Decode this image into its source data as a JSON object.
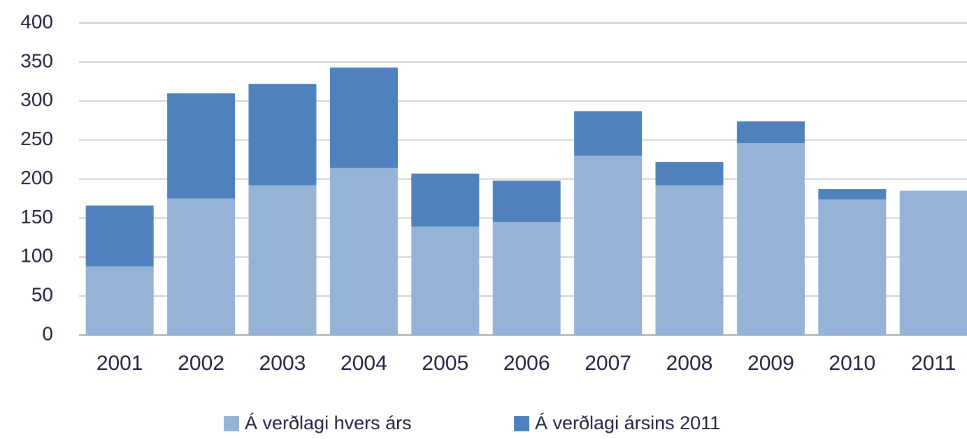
{
  "chart_data": {
    "type": "stacked_bar",
    "categories": [
      "2001",
      "2002",
      "2003",
      "2004",
      "2005",
      "2006",
      "2007",
      "2008",
      "2009",
      "2010",
      "2011"
    ],
    "series": [
      {
        "name": "Á verðlagi hvers árs",
        "color": "#95b3d7",
        "values": [
          88,
          175,
          192,
          214,
          139,
          145,
          230,
          192,
          246,
          174,
          185
        ]
      },
      {
        "name": "Á verðlagi ársins 2011",
        "color": "#4f81bd",
        "values": [
          78,
          135,
          130,
          129,
          68,
          53,
          57,
          30,
          28,
          13,
          0
        ]
      }
    ],
    "ylim": [
      0,
      400
    ],
    "yticks": [
      0,
      50,
      100,
      150,
      200,
      250,
      300,
      350,
      400
    ],
    "grid": true,
    "legend": "bottom"
  }
}
